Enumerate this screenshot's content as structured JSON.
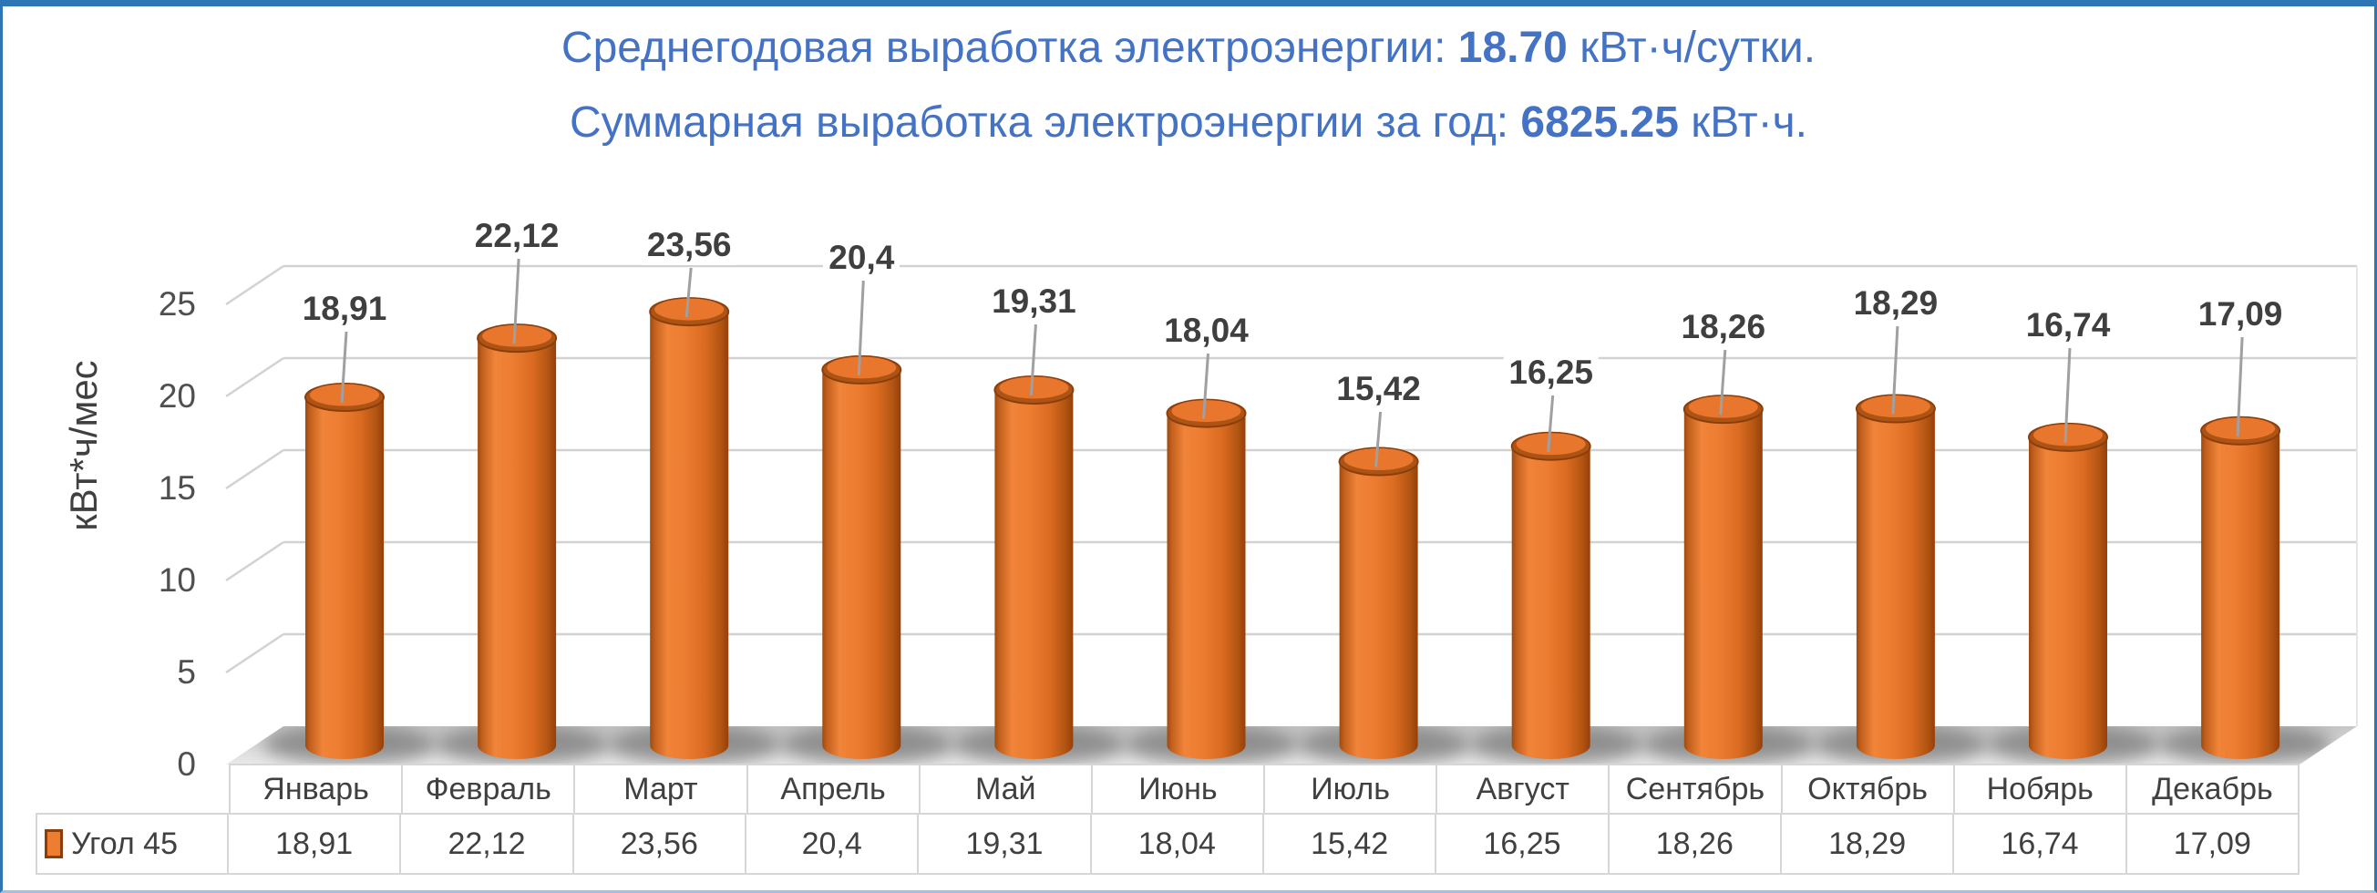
{
  "title": {
    "line1_prefix": "Среднегодовая выработка электроэнергии: ",
    "line1_value": "18.70",
    "line1_suffix": " кВт·ч/сутки.",
    "line2_prefix": "Суммарная выработка электроэнергии за год: ",
    "line2_value": "6825.25",
    "line2_suffix": " кВт·ч.",
    "color": "#4472C4"
  },
  "y_axis": {
    "title": "кВт*ч/мес",
    "ticks": [
      "0",
      "5",
      "10",
      "15",
      "20",
      "25"
    ]
  },
  "legend": {
    "label": "Угол 45",
    "marker_color": "#ED7D31"
  },
  "chart_data": {
    "type": "bar",
    "style": "3d-cylinder",
    "title": "",
    "xlabel": "",
    "ylabel": "кВт*ч/мес",
    "ylim": [
      0,
      25
    ],
    "ytick_step": 5,
    "grid": true,
    "legend_position": "bottom-table",
    "bar_color": "#ED7D31",
    "categories": [
      "Январь",
      "Февраль",
      "Март",
      "Апрель",
      "Май",
      "Июнь",
      "Июль",
      "Август",
      "Сентябрь",
      "Октябрь",
      "Нобярь",
      "Декабрь"
    ],
    "series": [
      {
        "name": "Угол 45",
        "values": [
          18.91,
          22.12,
          23.56,
          20.4,
          19.31,
          18.04,
          15.42,
          16.25,
          18.26,
          18.29,
          16.74,
          17.09
        ]
      }
    ],
    "value_labels": [
      "18,91",
      "22,12",
      "23,56",
      "20,4",
      "19,31",
      "18,04",
      "15,42",
      "16,25",
      "18,26",
      "18,29",
      "16,74",
      "17,09"
    ]
  },
  "colors": {
    "title_blue": "#4472C4",
    "bar_orange": "#ED7D31",
    "bar_rim_dark": "#8A3E0C",
    "gridline_gray": "#D2D2D2",
    "leader_gray": "#A0A0A0",
    "text_dark_gray": "#404040",
    "frame_border_blue": "#2E75B6"
  }
}
